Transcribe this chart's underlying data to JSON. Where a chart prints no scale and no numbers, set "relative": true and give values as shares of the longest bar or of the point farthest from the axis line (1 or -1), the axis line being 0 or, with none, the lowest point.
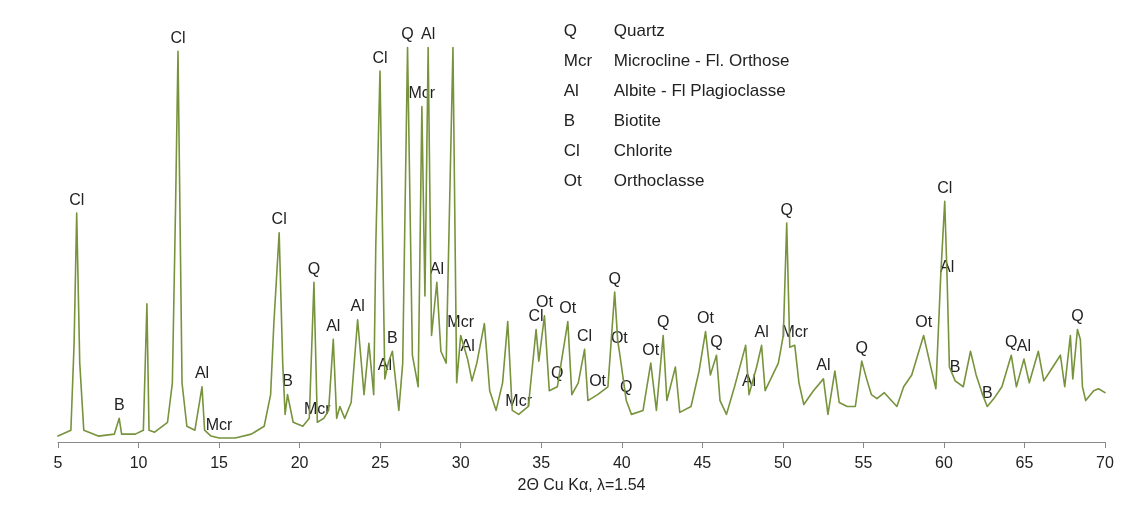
{
  "chart_data": {
    "type": "line",
    "relative": true,
    "xlabel": "2Θ Cu Kα, λ=1.54",
    "xlim": [
      5,
      70
    ],
    "xticks": [
      5,
      10,
      15,
      20,
      25,
      30,
      35,
      40,
      45,
      50,
      55,
      60,
      65,
      70
    ],
    "tick_labels": "x",
    "grid": false,
    "marker": "none",
    "line_style": "solid",
    "series": [
      {
        "color": "#77933c",
        "x": [
          5.0,
          5.8,
          6.0,
          6.16,
          6.35,
          6.6,
          7.5,
          8.5,
          8.8,
          8.95,
          9.8,
          10.3,
          10.52,
          10.65,
          11.0,
          11.8,
          12.1,
          12.3,
          12.45,
          12.7,
          13.0,
          13.5,
          13.94,
          14.1,
          14.5,
          15,
          16,
          17,
          17.8,
          18.2,
          18.4,
          18.73,
          18.95,
          19.1,
          19.25,
          19.6,
          20.2,
          20.6,
          20.89,
          21.1,
          21.5,
          21.8,
          22.09,
          22.3,
          22.5,
          22.8,
          23.2,
          23.6,
          24.0,
          24.3,
          24.6,
          24.73,
          24.99,
          25.29,
          25.5,
          25.76,
          26.16,
          26.4,
          26.7,
          27.0,
          27.36,
          27.59,
          27.78,
          27.98,
          28.19,
          28.52,
          28.77,
          29.1,
          29.52,
          29.75,
          30.0,
          30.43,
          30.7,
          31.0,
          31.47,
          31.8,
          32.2,
          32.6,
          32.92,
          33.2,
          33.6,
          34.2,
          34.68,
          34.85,
          35.2,
          35.5,
          36.0,
          36.65,
          36.9,
          37.3,
          37.69,
          37.9,
          38.5,
          39.14,
          39.56,
          39.75,
          39.85,
          40.28,
          40.6,
          41.32,
          41.8,
          42.15,
          42.57,
          42.8,
          43.33,
          43.6,
          44.3,
          44.8,
          45.2,
          45.5,
          45.88,
          46.1,
          46.5,
          47.0,
          47.69,
          47.9,
          48.37,
          48.68,
          48.9,
          49.72,
          50.03,
          50.24,
          50.43,
          50.74,
          51.0,
          51.3,
          51.9,
          52.52,
          52.8,
          53.23,
          53.5,
          54.0,
          54.5,
          54.9,
          55.2,
          55.5,
          55.84,
          56.3,
          57.08,
          57.5,
          58.0,
          58.74,
          59.1,
          59.5,
          59.8,
          60.05,
          60.2,
          60.34,
          60.7,
          61.2,
          61.65,
          62.0,
          62.4,
          62.69,
          63.1,
          63.6,
          64.18,
          64.5,
          64.97,
          65.3,
          65.86,
          66.2,
          66.6,
          67.23,
          67.5,
          67.85,
          68.0,
          68.29,
          68.47,
          68.6,
          68.8,
          69.3,
          69.6,
          70.0
        ],
        "values": [
          0.015,
          0.03,
          0.25,
          0.58,
          0.2,
          0.03,
          0.015,
          0.02,
          0.06,
          0.02,
          0.02,
          0.03,
          0.35,
          0.03,
          0.025,
          0.05,
          0.15,
          0.6,
          0.99,
          0.15,
          0.04,
          0.03,
          0.14,
          0.03,
          0.015,
          0.01,
          0.01,
          0.02,
          0.04,
          0.12,
          0.3,
          0.53,
          0.2,
          0.07,
          0.12,
          0.05,
          0.04,
          0.06,
          0.405,
          0.05,
          0.06,
          0.08,
          0.26,
          0.06,
          0.09,
          0.06,
          0.1,
          0.31,
          0.12,
          0.25,
          0.12,
          0.5,
          0.94,
          0.16,
          0.2,
          0.23,
          0.08,
          0.2,
          1.0,
          0.22,
          0.14,
          0.85,
          0.37,
          1.0,
          0.27,
          0.405,
          0.23,
          0.2,
          1.0,
          0.15,
          0.27,
          0.21,
          0.155,
          0.2,
          0.3,
          0.13,
          0.08,
          0.15,
          0.305,
          0.08,
          0.07,
          0.09,
          0.285,
          0.205,
          0.32,
          0.13,
          0.14,
          0.305,
          0.12,
          0.15,
          0.235,
          0.105,
          0.12,
          0.14,
          0.38,
          0.255,
          0.23,
          0.105,
          0.07,
          0.08,
          0.2,
          0.08,
          0.27,
          0.105,
          0.19,
          0.075,
          0.09,
          0.18,
          0.28,
          0.17,
          0.22,
          0.105,
          0.07,
          0.14,
          0.245,
          0.12,
          0.19,
          0.245,
          0.13,
          0.2,
          0.27,
          0.555,
          0.24,
          0.245,
          0.15,
          0.095,
          0.13,
          0.16,
          0.07,
          0.18,
          0.1,
          0.09,
          0.09,
          0.205,
          0.16,
          0.12,
          0.11,
          0.125,
          0.09,
          0.14,
          0.17,
          0.27,
          0.205,
          0.135,
          0.42,
          0.61,
          0.41,
          0.19,
          0.155,
          0.14,
          0.23,
          0.17,
          0.12,
          0.09,
          0.11,
          0.14,
          0.22,
          0.14,
          0.21,
          0.15,
          0.23,
          0.155,
          0.18,
          0.22,
          0.14,
          0.27,
          0.16,
          0.285,
          0.26,
          0.14,
          0.105,
          0.13,
          0.135,
          0.125
        ]
      }
    ],
    "annotations": [
      {
        "text": "Cl",
        "x": 6.16,
        "y": 0.58
      },
      {
        "text": "B",
        "x": 8.8,
        "y": 0.06
      },
      {
        "text": "Cl",
        "x": 12.45,
        "y": 0.99
      },
      {
        "text": "Al",
        "x": 13.94,
        "y": 0.14
      },
      {
        "text": "Mcr",
        "x": 15,
        "y": 0.01
      },
      {
        "text": "Cl",
        "x": 18.73,
        "y": 0.53
      },
      {
        "text": "B",
        "x": 19.25,
        "y": 0.12
      },
      {
        "text": "Q",
        "x": 20.89,
        "y": 0.405
      },
      {
        "text": "Mcr",
        "x": 21.1,
        "y": 0.05
      },
      {
        "text": "Al",
        "x": 22.09,
        "y": 0.26
      },
      {
        "text": "Al",
        "x": 23.6,
        "y": 0.31
      },
      {
        "text": "Al",
        "x": 25.29,
        "y": 0.16
      },
      {
        "text": "B",
        "x": 25.76,
        "y": 0.23
      },
      {
        "text": "Cl",
        "x": 24.99,
        "y": 0.94
      },
      {
        "text": "Q",
        "x": 26.7,
        "y": 1.0
      },
      {
        "text": "Al",
        "x": 27.98,
        "y": 1.0
      },
      {
        "text": "Mcr",
        "x": 27.59,
        "y": 0.85
      },
      {
        "text": "Al",
        "x": 28.52,
        "y": 0.405
      },
      {
        "text": "Mcr",
        "x": 30.0,
        "y": 0.27
      },
      {
        "text": "Al",
        "x": 30.43,
        "y": 0.21
      },
      {
        "text": "Cl",
        "x": 34.68,
        "y": 0.285
      },
      {
        "text": "Ot",
        "x": 35.2,
        "y": 0.32
      },
      {
        "text": "Q",
        "x": 36.0,
        "y": 0.14
      },
      {
        "text": "Ot",
        "x": 36.65,
        "y": 0.305
      },
      {
        "text": "Cl",
        "x": 37.69,
        "y": 0.235
      },
      {
        "text": "Ot",
        "x": 38.5,
        "y": 0.12
      },
      {
        "text": "Mcr",
        "x": 33.6,
        "y": 0.07
      },
      {
        "text": "Q",
        "x": 39.56,
        "y": 0.38
      },
      {
        "text": "Ot",
        "x": 39.85,
        "y": 0.23
      },
      {
        "text": "Ot",
        "x": 41.8,
        "y": 0.2
      },
      {
        "text": "Q",
        "x": 40.28,
        "y": 0.105
      },
      {
        "text": "Q",
        "x": 42.57,
        "y": 0.27
      },
      {
        "text": "Ot",
        "x": 45.2,
        "y": 0.28
      },
      {
        "text": "Q",
        "x": 45.88,
        "y": 0.22
      },
      {
        "text": "Al",
        "x": 47.9,
        "y": 0.12
      },
      {
        "text": "Al",
        "x": 48.68,
        "y": 0.245
      },
      {
        "text": "Mcr",
        "x": 50.74,
        "y": 0.245
      },
      {
        "text": "Al",
        "x": 52.52,
        "y": 0.16
      },
      {
        "text": "Q",
        "x": 50.24,
        "y": 0.555
      },
      {
        "text": "Q",
        "x": 54.9,
        "y": 0.205
      },
      {
        "text": "Ot",
        "x": 58.74,
        "y": 0.27
      },
      {
        "text": "Cl",
        "x": 60.05,
        "y": 0.61
      },
      {
        "text": "Al",
        "x": 60.2,
        "y": 0.41
      },
      {
        "text": "B",
        "x": 60.7,
        "y": 0.155
      },
      {
        "text": "B",
        "x": 62.69,
        "y": 0.09
      },
      {
        "text": "Q",
        "x": 64.18,
        "y": 0.22
      },
      {
        "text": "Al",
        "x": 64.97,
        "y": 0.21
      },
      {
        "text": "Q",
        "x": 68.29,
        "y": 0.285
      },
      "Q",
      "Quartz",
      "Mcr",
      "Microcline - Fl. Orthose",
      "Al",
      "Albite - Fl Plagioclasse",
      "B",
      "Biotite",
      "Cl",
      "Chlorite",
      "Ot",
      "Orthoclasse"
    ]
  }
}
